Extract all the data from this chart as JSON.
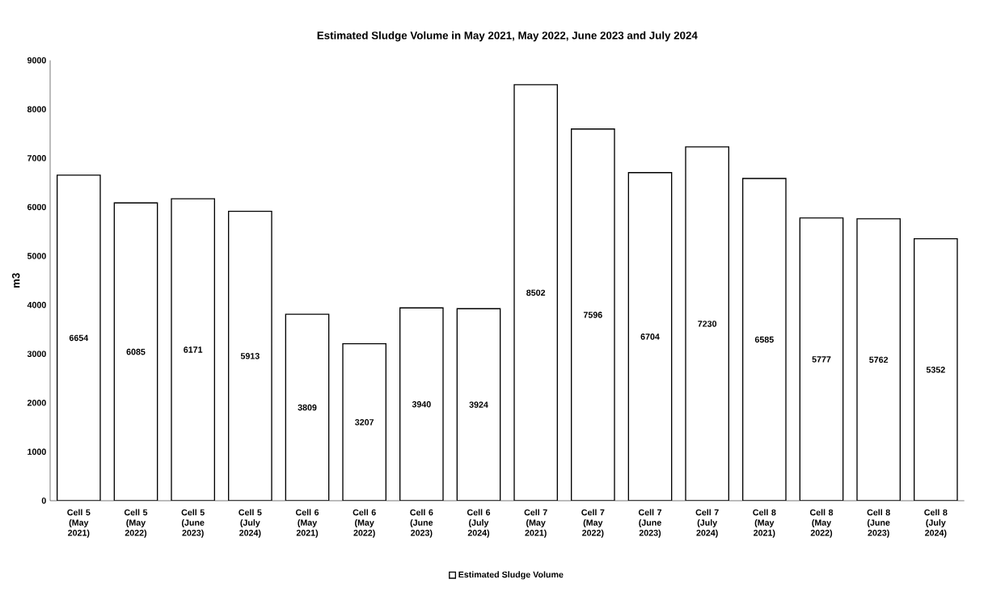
{
  "chart_data": {
    "type": "bar",
    "title": "Estimated Sludge Volume in May 2021, May 2022, June 2023 and July 2024",
    "ylabel": "m3",
    "categories": [
      "Cell 5 (May 2021)",
      "Cell 5 (May 2022)",
      "Cell 5 (June 2023)",
      "Cell 5 (July 2024)",
      "Cell 6 (May 2021)",
      "Cell 6 (May 2022)",
      "Cell 6 (June 2023)",
      "Cell 6 (July 2024)",
      "Cell 7 (May 2021)",
      "Cell 7 (May 2022)",
      "Cell 7 (June 2023)",
      "Cell 7 (July 2024)",
      "Cell 8 (May 2021)",
      "Cell 8 (May 2022)",
      "Cell 8 (June 2023)",
      "Cell 8 (July 2024)"
    ],
    "series": [
      {
        "name": "Estimated Sludge Volume",
        "color": "#ffffff",
        "values": [
          6654,
          6085,
          6171,
          5913,
          3809,
          3207,
          3940,
          3924,
          8502,
          7596,
          6704,
          7230,
          6585,
          5777,
          5762,
          5352
        ]
      }
    ],
    "ylim": [
      0,
      9000
    ],
    "yticks": [
      0,
      1000,
      2000,
      3000,
      4000,
      5000,
      6000,
      7000,
      8000,
      9000
    ],
    "grid": false,
    "legend": "bottom",
    "data_labels": true
  }
}
